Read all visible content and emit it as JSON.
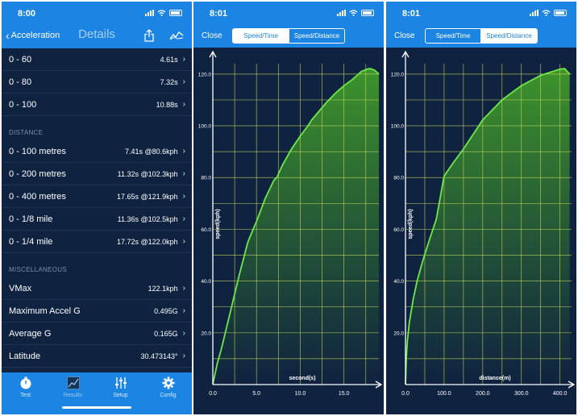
{
  "details": {
    "time": "8:00",
    "back_label": "Acceleration",
    "title": "Details",
    "rows_speed": [
      {
        "label": "0 - 60",
        "value": "4.61s"
      },
      {
        "label": "0 - 80",
        "value": "7.32s"
      },
      {
        "label": "0 - 100",
        "value": "10.88s"
      }
    ],
    "section_distance": "DISTANCE",
    "rows_distance": [
      {
        "label": "0 - 100 metres",
        "value": "7.41s @80.6kph"
      },
      {
        "label": "0 - 200 metres",
        "value": "11.32s @102.3kph"
      },
      {
        "label": "0 - 400 metres",
        "value": "17.65s @121.9kph"
      },
      {
        "label": "0 - 1/8 mile",
        "value": "11.36s @102.5kph"
      },
      {
        "label": "0 - 1/4 mile",
        "value": "17.72s @122.0kph"
      }
    ],
    "section_misc": "MISCELLANEOUS",
    "rows_misc": [
      {
        "label": "VMax",
        "value": "122.1kph"
      },
      {
        "label": "Maximum Accel G",
        "value": "0.495G"
      },
      {
        "label": "Average G",
        "value": "0.165G"
      },
      {
        "label": "Latitude",
        "value": "30.473143°"
      }
    ],
    "tabs": [
      {
        "label": "Test",
        "icon": "stopwatch-icon"
      },
      {
        "label": "Results",
        "icon": "graph-icon"
      },
      {
        "label": "Setup",
        "icon": "sliders-icon"
      },
      {
        "label": "Config",
        "icon": "gear-icon"
      }
    ]
  },
  "speed_time": {
    "time": "8:01",
    "close_label": "Close",
    "seg_left": "Speed/Time",
    "seg_right": "Speed/Distance",
    "active": "left"
  },
  "speed_distance": {
    "time": "8:01",
    "close_label": "Close",
    "seg_left": "Speed/Time",
    "seg_right": "Speed/Distance",
    "active": "right"
  },
  "colors": {
    "accent": "#1c84e3",
    "background": "#0f2240",
    "curve": "#6ee84a",
    "grid": "#c8d85a"
  },
  "chart_data": [
    {
      "type": "area",
      "xlabel": "second(s)",
      "ylabel": "speed(kph)",
      "x_ticks": [
        "0.0",
        "5.0",
        "10.0",
        "15.0"
      ],
      "y_ticks": [
        "20.0",
        "40.0",
        "60.0",
        "80.0",
        "100.0",
        "120.0"
      ],
      "xlim": [
        0,
        19
      ],
      "ylim": [
        0,
        124
      ],
      "x": [
        0,
        0.5,
        1,
        2,
        3,
        4,
        4.61,
        5,
        6,
        7,
        7.32,
        7.41,
        8,
        9,
        10,
        10.88,
        11.32,
        12,
        13,
        14,
        15,
        16,
        17,
        17.65,
        18,
        18.5,
        19
      ],
      "y": [
        0,
        8,
        14,
        28,
        42,
        55,
        60,
        63,
        72,
        79,
        80,
        80.6,
        85,
        91,
        96,
        100,
        102.3,
        105,
        109,
        112.5,
        115.5,
        118,
        121,
        121.9,
        122.1,
        121.5,
        120
      ]
    },
    {
      "type": "area",
      "xlabel": "distance(m)",
      "ylabel": "speed(kph)",
      "x_ticks": [
        "0.0",
        "100.0",
        "200.0",
        "300.0",
        "400.0"
      ],
      "y_ticks": [
        "20.0",
        "40.0",
        "60.0",
        "80.0",
        "100.0",
        "120.0"
      ],
      "xlim": [
        0,
        430
      ],
      "ylim": [
        0,
        124
      ],
      "x": [
        0,
        2,
        5,
        10,
        20,
        30,
        45,
        60,
        80,
        100,
        125,
        150,
        200,
        250,
        300,
        350,
        400,
        412,
        425
      ],
      "y": [
        0,
        10,
        17,
        24,
        33,
        40,
        48,
        55,
        64,
        80.6,
        86,
        91,
        102.3,
        110,
        115.5,
        119.5,
        121.9,
        122.1,
        120
      ]
    }
  ]
}
